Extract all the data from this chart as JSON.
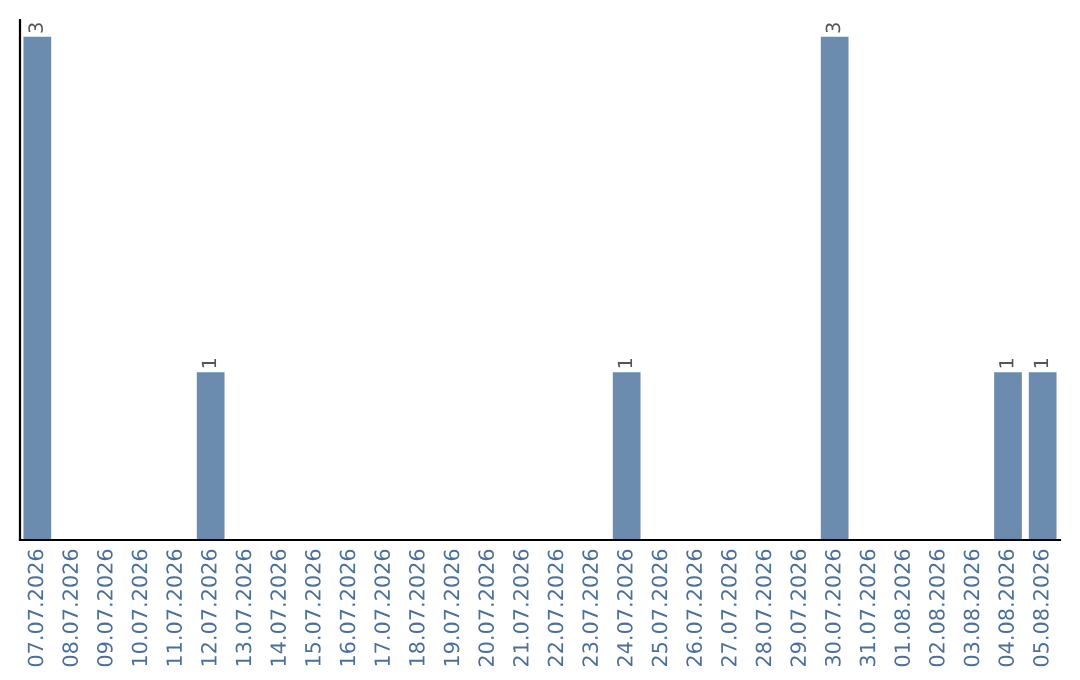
{
  "chart_data": {
    "type": "bar",
    "categories": [
      "07.07.2026",
      "08.07.2026",
      "09.07.2026",
      "10.07.2026",
      "11.07.2026",
      "12.07.2026",
      "13.07.2026",
      "14.07.2026",
      "15.07.2026",
      "16.07.2026",
      "17.07.2026",
      "18.07.2026",
      "19.07.2026",
      "20.07.2026",
      "21.07.2026",
      "22.07.2026",
      "23.07.2026",
      "24.07.2026",
      "25.07.2026",
      "26.07.2026",
      "27.07.2026",
      "28.07.2026",
      "29.07.2026",
      "30.07.2026",
      "31.07.2026",
      "01.08.2026",
      "02.08.2026",
      "03.08.2026",
      "04.08.2026",
      "05.08.2026"
    ],
    "values": [
      3,
      0,
      0,
      0,
      0,
      1,
      0,
      0,
      0,
      0,
      0,
      0,
      0,
      0,
      0,
      0,
      0,
      1,
      0,
      0,
      0,
      0,
      0,
      3,
      0,
      0,
      0,
      0,
      1,
      1
    ],
    "value_labels": [
      "3",
      null,
      null,
      null,
      null,
      "1",
      null,
      null,
      null,
      null,
      null,
      null,
      null,
      null,
      null,
      null,
      null,
      "1",
      null,
      null,
      null,
      null,
      null,
      "3",
      null,
      null,
      null,
      null,
      "1",
      "1"
    ],
    "color": "#6b8cae",
    "ylim": [
      0,
      3.1
    ],
    "tick_labels": "x",
    "grid": false,
    "legend": false
  }
}
